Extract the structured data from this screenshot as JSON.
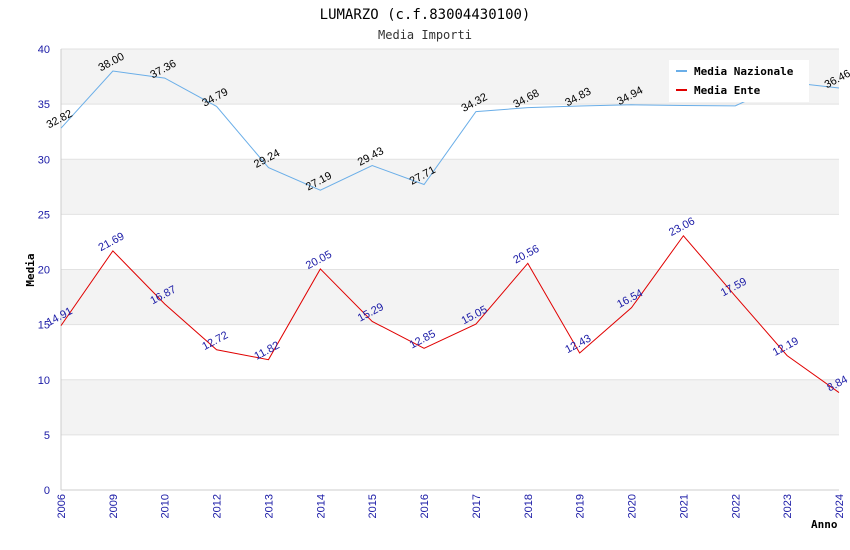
{
  "chart_data": {
    "type": "line",
    "title": "LUMARZO (c.f.83004430100)",
    "subtitle": "Media Importi",
    "xlabel": "Anno",
    "ylabel": "Media",
    "ylim": [
      0,
      40
    ],
    "yticks": [
      0,
      5,
      10,
      15,
      20,
      25,
      30,
      35,
      40
    ],
    "categories": [
      "2006",
      "2009",
      "2010",
      "2012",
      "2013",
      "2014",
      "2015",
      "2016",
      "2017",
      "2018",
      "2019",
      "2020",
      "2021",
      "2022",
      "2023",
      "2024"
    ],
    "series": [
      {
        "name": "Media Nazionale",
        "color": "#6aaee8",
        "label_color": "#000000",
        "values": [
          32.82,
          38.0,
          37.36,
          34.79,
          29.24,
          27.19,
          29.43,
          27.71,
          34.32,
          34.68,
          34.83,
          34.94,
          34.87,
          34.84,
          36.99,
          36.46
        ],
        "labels": [
          "32.82",
          "38.00",
          "37.36",
          "34.79",
          "29.24",
          "27.19",
          "29.43",
          "27.71",
          "34.32",
          "34.68",
          "34.83",
          "34.94",
          "",
          "",
          "",
          "36.46"
        ]
      },
      {
        "name": "Media Ente",
        "color": "#e00000",
        "label_color": "#1a1aa6",
        "values": [
          14.91,
          21.69,
          16.87,
          12.72,
          11.82,
          20.05,
          15.29,
          12.85,
          15.05,
          20.56,
          12.43,
          16.54,
          23.06,
          17.59,
          12.19,
          8.84
        ],
        "labels": [
          "14.91",
          "21.69",
          "16.87",
          "12.72",
          "11.82",
          "20.05",
          "15.29",
          "12.85",
          "15.05",
          "20.56",
          "12.43",
          "16.54",
          "23.06",
          "17.59",
          "12.19",
          "8.84"
        ]
      }
    ],
    "grid": true,
    "legend_position": "top-right"
  }
}
